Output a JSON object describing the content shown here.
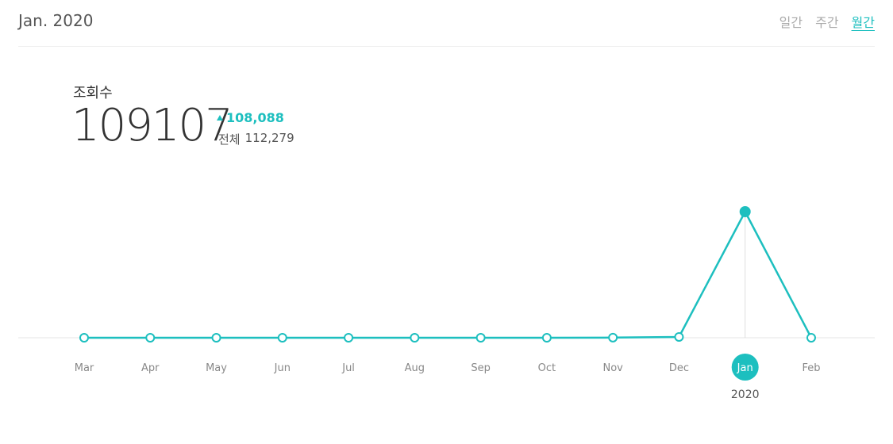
{
  "header": {
    "title": "Jan. 2020",
    "tabs": [
      {
        "label": "일간",
        "active": false
      },
      {
        "label": "주간",
        "active": false
      },
      {
        "label": "월간",
        "active": true
      }
    ]
  },
  "summary": {
    "label": "조회수",
    "value": "109107",
    "change": "108,088",
    "total_label": "전체",
    "total_value": "112,279"
  },
  "colors": {
    "accent": "#1dbfbf",
    "baseline": "#eeeeee"
  },
  "chart_data": {
    "type": "line",
    "categories": [
      "Mar",
      "Apr",
      "May",
      "Jun",
      "Jul",
      "Aug",
      "Sep",
      "Oct",
      "Nov",
      "Dec",
      "Jan",
      "Feb"
    ],
    "series": [
      {
        "name": "",
        "values": [
          0,
          0,
          0,
          0,
          0,
          0,
          0,
          10,
          120,
          700,
          108088,
          0
        ]
      }
    ],
    "selected_index": 10,
    "selected_year_label": "2020",
    "ylim": [
      0,
      108088
    ],
    "grid": false,
    "legend": "none"
  }
}
